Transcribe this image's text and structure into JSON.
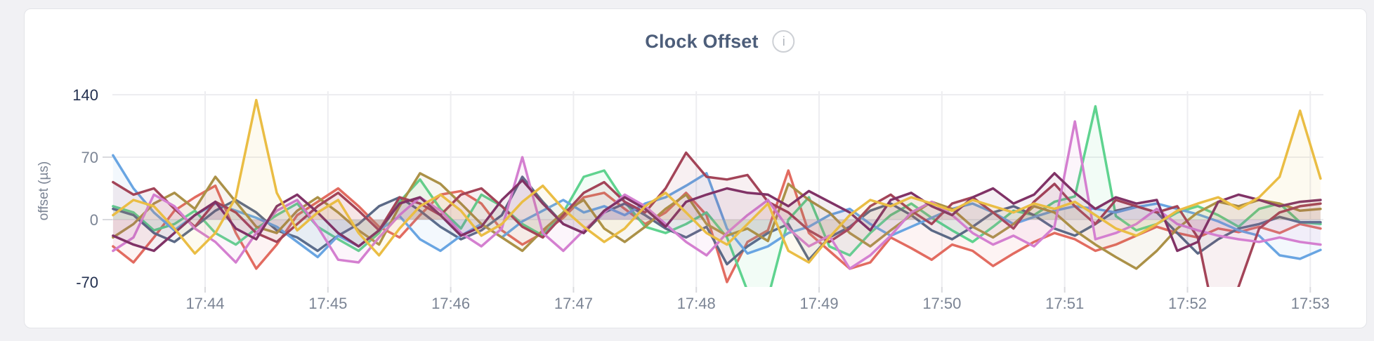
{
  "page": {
    "background": "#f1f1f4"
  },
  "card": {
    "background": "#ffffff",
    "border_color": "#e3e4e8"
  },
  "header": {
    "title": "Clock Offset",
    "info_icon_glyph": "i"
  },
  "chart_data": {
    "type": "line",
    "title": "Clock Offset",
    "xlabel": "",
    "ylabel": "offset (µs)",
    "legend": "none",
    "grid": true,
    "colors": {
      "gridline": "#ededf0",
      "tick": "#d9dade",
      "label_gray": "#7b8494",
      "label_dark": "#23304f"
    },
    "x_axis": {
      "range_minutes": [
        43.245,
        53.107
      ],
      "tick_minutes": [
        44,
        45,
        46,
        47,
        48,
        49,
        50,
        51,
        52,
        53
      ],
      "tick_labels": [
        "17:44",
        "17:45",
        "17:46",
        "17:47",
        "17:48",
        "17:49",
        "17:50",
        "17:51",
        "17:52",
        "17:53"
      ]
    },
    "y_axis": {
      "range": [
        -75.5,
        143.9
      ],
      "ticks": [
        140,
        70,
        0,
        -70
      ],
      "emphasized_ticks": [
        140,
        -70
      ],
      "gridline_values": [
        140,
        70,
        0
      ],
      "dash_tick_values": [
        70,
        0
      ]
    },
    "sampling": {
      "x_start_minutes": 43.25,
      "x_step_minutes": 0.1666667,
      "points_per_series": 60
    },
    "series": [
      {
        "name": "red",
        "color": "#e26b60",
        "values": [
          -30,
          -48,
          -20,
          10,
          25,
          38,
          -15,
          -55,
          -28,
          5,
          20,
          35,
          15,
          -8,
          -20,
          5,
          28,
          32,
          18,
          -12,
          -28,
          -15,
          2,
          25,
          30,
          12,
          -5,
          8,
          30,
          5,
          -70,
          -25,
          -12,
          55,
          -15,
          -35,
          -55,
          -48,
          -20,
          -32,
          -45,
          -28,
          -35,
          -52,
          -38,
          -25,
          -15,
          -22,
          -35,
          -28,
          -18,
          -8,
          -15,
          -20,
          -10,
          -14,
          -8,
          -15,
          -5,
          -10
        ]
      },
      {
        "name": "green",
        "color": "#5fd38f",
        "values": [
          15,
          8,
          -12,
          -5,
          10,
          -15,
          -28,
          -10,
          5,
          18,
          -8,
          -22,
          -35,
          -15,
          20,
          45,
          12,
          -10,
          28,
          15,
          -5,
          -18,
          8,
          48,
          55,
          20,
          -8,
          -15,
          -5,
          8,
          -20,
          -80,
          -88,
          0,
          25,
          -30,
          -40,
          -15,
          5,
          18,
          2,
          -12,
          -25,
          -8,
          10,
          5,
          20,
          26,
          127,
          4,
          -12,
          -5,
          8,
          15,
          5,
          -8,
          12,
          18,
          -3,
          -5
        ]
      },
      {
        "name": "slate",
        "color": "#5b6986",
        "values": [
          12,
          5,
          -15,
          -25,
          -8,
          10,
          22,
          8,
          -12,
          -20,
          -35,
          -18,
          -5,
          15,
          25,
          10,
          -8,
          -22,
          -12,
          5,
          48,
          20,
          -5,
          -15,
          8,
          18,
          5,
          -10,
          -20,
          -8,
          -50,
          -30,
          -15,
          -5,
          -45,
          -20,
          -8,
          10,
          18,
          5,
          -12,
          -22,
          -8,
          8,
          15,
          5,
          -10,
          -18,
          -5,
          10,
          15,
          8,
          -15,
          -38,
          -22,
          -10,
          -5,
          3,
          -3,
          -3
        ]
      },
      {
        "name": "blue",
        "color": "#69a5e2",
        "values": [
          72,
          35,
          8,
          -12,
          5,
          18,
          10,
          2,
          -8,
          -25,
          -42,
          -18,
          -30,
          -12,
          4,
          -22,
          -35,
          -18,
          -5,
          -20,
          -2,
          10,
          22,
          8,
          15,
          5,
          18,
          25,
          38,
          52,
          -10,
          -38,
          -30,
          -15,
          -8,
          5,
          12,
          -5,
          -18,
          -8,
          2,
          12,
          18,
          8,
          -5,
          3,
          10,
          15,
          12,
          8,
          14,
          18,
          12,
          6,
          -2,
          -12,
          -18,
          -40,
          -44,
          -34
        ]
      },
      {
        "name": "olive",
        "color": "#ab9147",
        "values": [
          -20,
          -5,
          18,
          30,
          12,
          48,
          20,
          -8,
          -15,
          10,
          25,
          8,
          -12,
          -28,
          15,
          52,
          40,
          18,
          -5,
          -20,
          -35,
          -12,
          8,
          22,
          -10,
          -25,
          -8,
          12,
          28,
          -5,
          -18,
          -10,
          -24,
          40,
          22,
          8,
          -15,
          -30,
          -12,
          5,
          20,
          12,
          -8,
          -20,
          -5,
          15,
          8,
          -12,
          -28,
          -42,
          -55,
          -35,
          -10,
          8,
          20,
          15,
          22,
          18,
          10,
          12
        ]
      },
      {
        "name": "maroon",
        "color": "#a34458",
        "values": [
          42,
          28,
          35,
          12,
          -8,
          20,
          8,
          -15,
          -25,
          -5,
          15,
          30,
          10,
          -12,
          25,
          18,
          5,
          28,
          35,
          15,
          -8,
          -20,
          5,
          30,
          42,
          20,
          8,
          35,
          75,
          48,
          45,
          50,
          20,
          8,
          -12,
          -25,
          -10,
          15,
          28,
          10,
          -5,
          18,
          25,
          8,
          -10,
          20,
          40,
          15,
          -5,
          22,
          15,
          8,
          15,
          -20,
          -130,
          -75,
          -10,
          8,
          15,
          18
        ]
      },
      {
        "name": "orchid",
        "color": "#d47fd0",
        "values": [
          -35,
          -20,
          28,
          15,
          -10,
          -25,
          -48,
          -15,
          10,
          22,
          -8,
          -45,
          -48,
          -20,
          5,
          25,
          10,
          -15,
          -30,
          -10,
          70,
          -15,
          -35,
          -12,
          8,
          28,
          15,
          -5,
          -25,
          -40,
          -15,
          5,
          22,
          -10,
          -30,
          -18,
          -55,
          -40,
          -18,
          8,
          20,
          5,
          -15,
          -28,
          -18,
          -30,
          -8,
          110,
          -22,
          -15,
          -5,
          12,
          -5,
          -12,
          -18,
          -22,
          -25,
          -20,
          -25,
          -28
        ]
      },
      {
        "name": "plum",
        "color": "#803266",
        "values": [
          -18,
          -28,
          -35,
          -15,
          5,
          20,
          -10,
          -22,
          15,
          28,
          8,
          -15,
          -30,
          -12,
          18,
          25,
          5,
          -18,
          -8,
          22,
          44,
          18,
          -5,
          -15,
          10,
          25,
          12,
          -8,
          20,
          28,
          35,
          30,
          28,
          15,
          32,
          20,
          8,
          -12,
          22,
          30,
          15,
          5,
          25,
          35,
          18,
          28,
          52,
          30,
          12,
          25,
          18,
          22,
          -35,
          -25,
          20,
          28,
          22,
          15,
          20,
          22
        ]
      },
      {
        "name": "gold",
        "color": "#eabd44",
        "values": [
          5,
          22,
          15,
          -10,
          -38,
          -15,
          25,
          134,
          30,
          -12,
          8,
          22,
          -15,
          -40,
          -10,
          15,
          28,
          10,
          -18,
          -5,
          20,
          38,
          12,
          -8,
          -25,
          -10,
          15,
          30,
          8,
          -15,
          -28,
          -5,
          18,
          -35,
          -48,
          -20,
          5,
          22,
          15,
          25,
          18,
          10,
          22,
          15,
          8,
          18,
          12,
          20,
          5,
          -10,
          -18,
          -5,
          10,
          18,
          25,
          12,
          25,
          48,
          122,
          46
        ]
      }
    ]
  }
}
